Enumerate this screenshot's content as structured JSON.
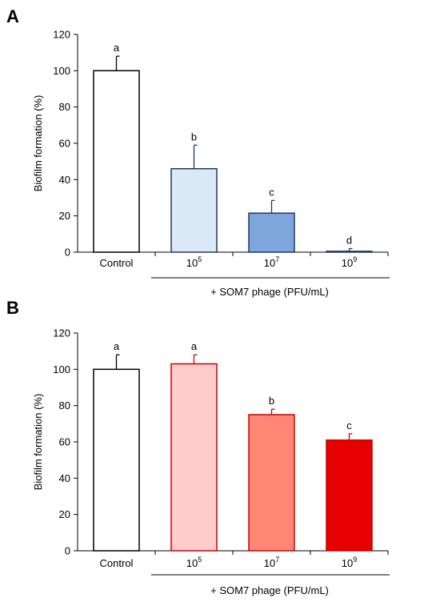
{
  "chart_data": [
    {
      "panel": "A",
      "type": "bar",
      "ylabel": "Biofilm formation (%)",
      "ylim": [
        0,
        120
      ],
      "yticks": [
        0,
        20,
        40,
        60,
        80,
        100,
        120
      ],
      "categories": [
        "Control",
        "10^5",
        "10^7",
        "10^9"
      ],
      "values": [
        100,
        46,
        21.5,
        0.5
      ],
      "errors": [
        8,
        13,
        7,
        1.5
      ],
      "significance": [
        "a",
        "b",
        "c",
        "d"
      ],
      "colors": [
        "#ffffff",
        "#dbe8f5",
        "#7ea6dd",
        "#ffffff"
      ],
      "edge_color": "#1f3864",
      "group_label": "+ SOM7 phage (PFU/mL)"
    },
    {
      "panel": "B",
      "type": "bar",
      "ylabel": "Biofilm formation (%)",
      "ylim": [
        0,
        120
      ],
      "yticks": [
        0,
        20,
        40,
        60,
        80,
        100,
        120
      ],
      "categories": [
        "Control",
        "10^5",
        "10^7",
        "10^9"
      ],
      "values": [
        100,
        103,
        75,
        61
      ],
      "errors": [
        8,
        5,
        3,
        3.5
      ],
      "significance": [
        "a",
        "a",
        "b",
        "c"
      ],
      "colors": [
        "#ffffff",
        "#ffcccc",
        "#ff8575",
        "#e60000"
      ],
      "edge_color": "#cc0000",
      "group_label": "+ SOM7 phage (PFU/mL)"
    }
  ]
}
